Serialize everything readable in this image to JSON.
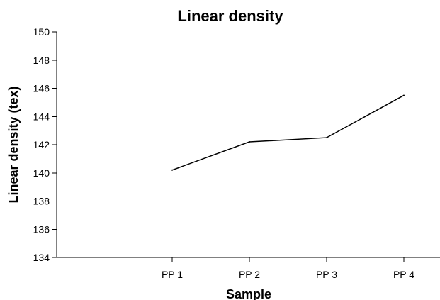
{
  "chart_data": {
    "type": "line",
    "title": "Linear density",
    "xlabel": "Sample",
    "ylabel": "Linear density (tex)",
    "categories": [
      "PP 1",
      "PP 2",
      "PP 3",
      "PP 4"
    ],
    "series": [
      {
        "values": [
          140.2,
          142.2,
          142.5,
          145.5
        ],
        "color": "#000000"
      }
    ],
    "ylim": [
      134,
      150
    ],
    "yticks": [
      134,
      136,
      138,
      140,
      142,
      144,
      146,
      148,
      150
    ],
    "grid": false,
    "legend": "none"
  }
}
